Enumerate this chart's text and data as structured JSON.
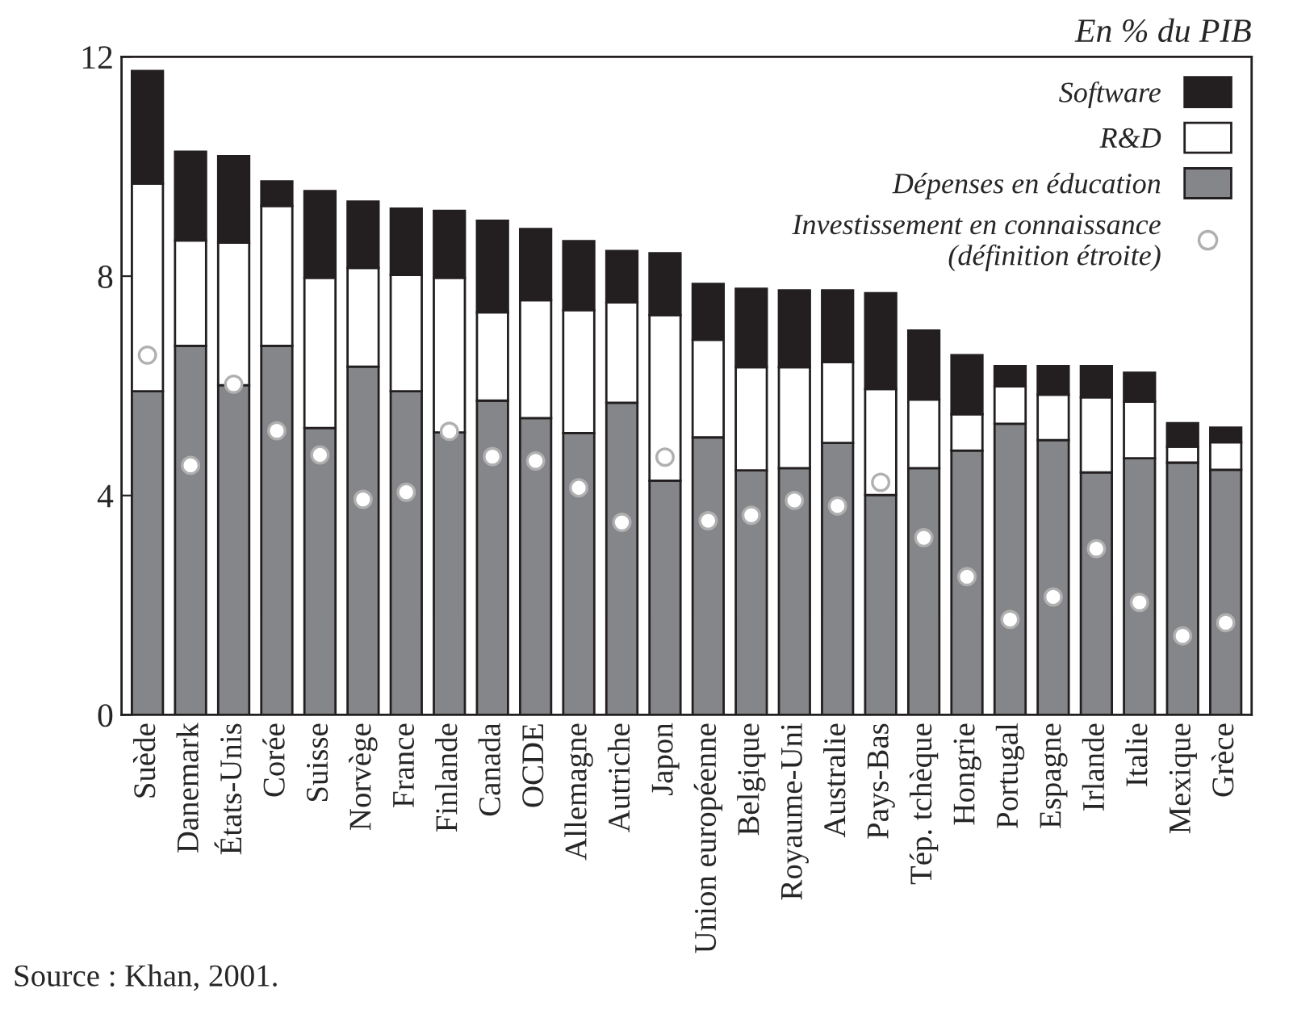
{
  "chart_data": {
    "type": "bar",
    "stacked": true,
    "categories": [
      "Suède",
      "Danemark",
      "États-Unis",
      "Corée",
      "Suisse",
      "Norvège",
      "France",
      "Finlande",
      "Canada",
      "OCDE",
      "Allemagne",
      "Autriche",
      "Japon",
      "Union européenne",
      "Belgique",
      "Royaume-Uni",
      "Australie",
      "Pays-Bas",
      "Tép. tchèque",
      "Hongrie",
      "Portugal",
      "Espagne",
      "Irlande",
      "Italie",
      "Mexique",
      "Grèce"
    ],
    "series": [
      {
        "name": "Dépenses en éducation",
        "color": "#858689",
        "values": [
          5.9,
          6.73,
          6.01,
          6.73,
          5.23,
          6.35,
          5.9,
          5.15,
          5.73,
          5.41,
          5.14,
          5.69,
          4.27,
          5.06,
          4.46,
          4.5,
          4.96,
          4.01,
          4.5,
          4.82,
          5.31,
          5.01,
          4.42,
          4.68,
          4.6,
          4.47
        ]
      },
      {
        "name": "R&D",
        "color": "#ffffff",
        "values": [
          3.79,
          1.92,
          2.6,
          2.55,
          2.74,
          1.8,
          2.12,
          2.82,
          1.61,
          2.15,
          2.24,
          1.83,
          3.02,
          1.78,
          1.88,
          1.84,
          1.47,
          1.93,
          1.25,
          0.66,
          0.68,
          0.83,
          1.37,
          1.03,
          0.29,
          0.5
        ]
      },
      {
        "name": "Software",
        "color": "#231f20",
        "values": [
          2.05,
          1.62,
          1.58,
          0.45,
          1.58,
          1.21,
          1.21,
          1.22,
          1.67,
          1.3,
          1.26,
          0.94,
          1.13,
          1.02,
          1.43,
          1.4,
          1.31,
          1.75,
          1.26,
          1.08,
          0.37,
          0.52,
          0.57,
          0.53,
          0.43,
          0.27
        ]
      },
      {
        "name": "Investissement en connaissance\n(définition étroite)",
        "type": "scatter",
        "marker": "circle",
        "color": "#ffffff",
        "x": [
          "Suède",
          "Danemark",
          "États-Unis",
          "Corée",
          "Suisse",
          "Norvège",
          "France",
          "Finlande",
          "Canada",
          "OCDE",
          "Allemagne",
          "Autriche",
          "Japon",
          "Union européenne",
          "Belgique",
          "Royaume-Uni",
          "Australie",
          "Pays-Bas",
          "Tép. tchèque",
          "Hongrie",
          "Portugal",
          "Espagne",
          "Irlande",
          "Italie",
          "Mexique",
          "Grèce"
        ],
        "values": [
          6.56,
          4.55,
          6.03,
          5.18,
          4.74,
          3.93,
          4.06,
          5.17,
          4.71,
          4.63,
          4.14,
          3.51,
          4.7,
          3.54,
          3.64,
          3.91,
          3.81,
          4.24,
          3.23,
          2.52,
          1.74,
          2.15,
          3.03,
          2.05,
          1.44,
          1.68
        ]
      }
    ],
    "ylim": [
      0,
      12
    ],
    "yticks": [
      0,
      4,
      8,
      12
    ],
    "grid": false,
    "legend": "top right",
    "annotations": [
      "En % du PIB",
      "Source : Khan, 2001."
    ]
  }
}
